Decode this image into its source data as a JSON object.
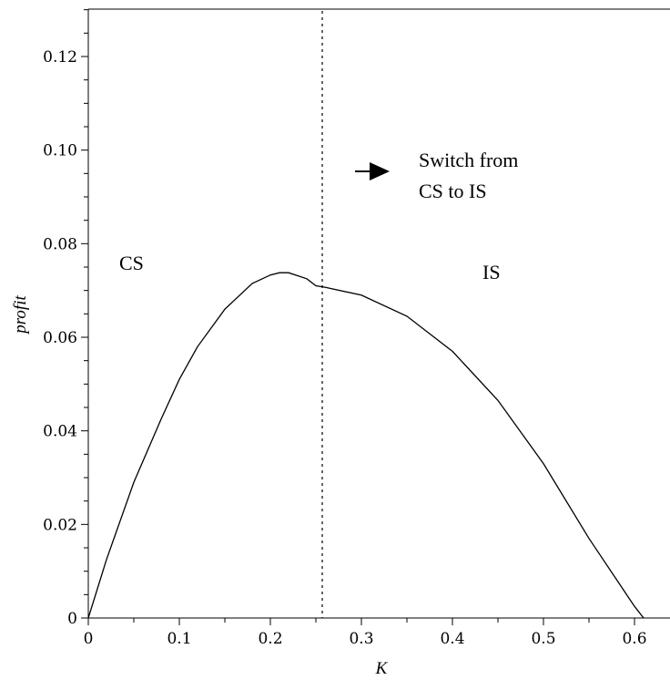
{
  "chart_data": {
    "type": "line",
    "title": "",
    "xlabel": "K",
    "ylabel": "profit",
    "xlim": [
      0,
      0.65
    ],
    "ylim": [
      0,
      0.13
    ],
    "xticks": [
      0,
      0.1,
      0.2,
      0.3,
      0.4,
      0.5,
      0.6
    ],
    "xtick_labels": [
      "0",
      "0.1",
      "0.2",
      "0.3",
      "0.4",
      "0.5",
      "0.6"
    ],
    "yticks": [
      0,
      0.02,
      0.04,
      0.06,
      0.08,
      0.1,
      0.12
    ],
    "ytick_labels": [
      "0",
      "0.02",
      "0.04",
      "0.06",
      "0.08",
      "0.10",
      "0.12"
    ],
    "grid": false,
    "series": [
      {
        "x": [
          0,
          0.02,
          0.05,
          0.08,
          0.1,
          0.12,
          0.15,
          0.18,
          0.2,
          0.21,
          0.22,
          0.24,
          0.25,
          0.26,
          0.3,
          0.35,
          0.4,
          0.45,
          0.5,
          0.55,
          0.6,
          0.61
        ],
        "y": [
          0,
          0.0125,
          0.029,
          0.0425,
          0.051,
          0.058,
          0.066,
          0.0715,
          0.0733,
          0.0738,
          0.0738,
          0.0725,
          0.071,
          0.0707,
          0.069,
          0.0645,
          0.057,
          0.0465,
          0.033,
          0.017,
          0.0025,
          0
        ]
      }
    ],
    "vline": {
      "x": 0.257,
      "style": "dotted"
    },
    "annotations": {
      "cs": "CS",
      "is": "IS",
      "switch_line1": "Switch from",
      "switch_line2": "CS to IS"
    }
  }
}
